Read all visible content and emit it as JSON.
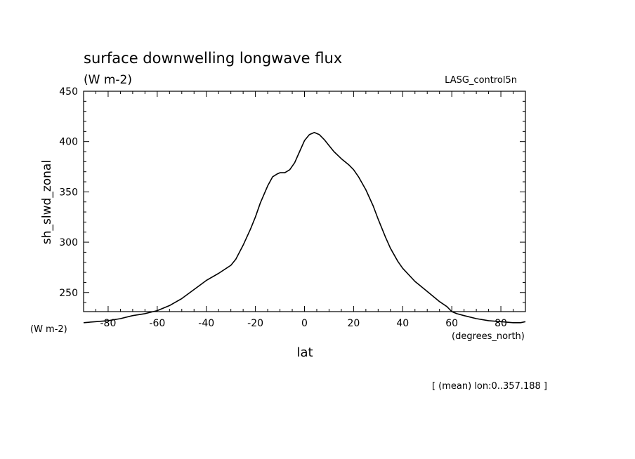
{
  "chart_data": {
    "type": "line",
    "title": "surface downwelling longwave flux",
    "units_label": "(W m-2)",
    "dataset_label": "LASG_control5n",
    "ylabel": "sh_slwd_zonal",
    "xlabel": "lat",
    "x_units_label": "(degrees_north)",
    "y_units_corner_label": "(W m-2)",
    "footnote": "[ (mean) lon:0..357.188 ]",
    "xlim": [
      -90,
      90
    ],
    "ylim": [
      231,
      450
    ],
    "x_ticks": [
      -80,
      -60,
      -40,
      -20,
      0,
      20,
      40,
      60,
      80
    ],
    "x_tick_labels": [
      "-80",
      "-60",
      "-40",
      "-20",
      "0",
      "20",
      "40",
      "60",
      "80"
    ],
    "y_ticks": [
      250,
      300,
      350,
      400,
      450
    ],
    "y_tick_labels": [
      "250",
      "300",
      "350",
      "400",
      "450"
    ],
    "grid": false,
    "series": [
      {
        "x": [
          -90,
          -85,
          -80,
          -75,
          -70,
          -65,
          -60,
          -55,
          -50,
          -45,
          -40,
          -35,
          -30,
          -28,
          -25,
          -22,
          -20,
          -18,
          -15,
          -13,
          -11,
          -10,
          -8,
          -6,
          -4,
          -2,
          0,
          2,
          4,
          6,
          8,
          10,
          12,
          15,
          18,
          20,
          22,
          25,
          28,
          30,
          33,
          35,
          38,
          40,
          45,
          50,
          55,
          58,
          60,
          62,
          65,
          70,
          75,
          80,
          85,
          88,
          90
        ],
        "y": [
          220,
          221,
          222,
          224,
          227,
          229,
          232,
          237,
          244,
          253,
          262,
          269,
          277,
          283,
          297,
          313,
          325,
          339,
          356,
          365,
          368,
          369,
          369,
          372,
          379,
          390,
          401,
          407,
          409,
          407,
          402,
          396,
          390,
          383,
          377,
          372,
          365,
          352,
          336,
          323,
          305,
          294,
          281,
          274,
          261,
          251,
          241,
          236,
          231,
          229,
          227,
          224,
          222,
          221,
          220,
          220,
          221
        ]
      }
    ]
  }
}
